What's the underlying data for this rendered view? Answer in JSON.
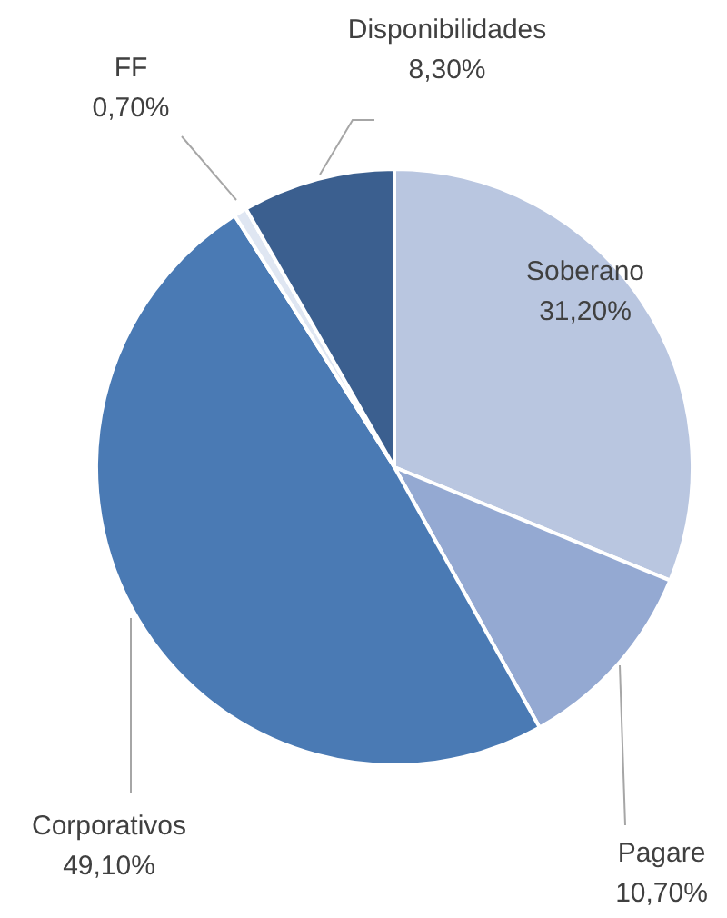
{
  "chart_data": {
    "type": "pie",
    "categories": [
      "Soberano",
      "Pagare",
      "Corporativos",
      "FF",
      "Disponibilidades"
    ],
    "values": [
      31.2,
      10.7,
      49.1,
      0.7,
      8.3
    ],
    "value_labels": [
      "31,20%",
      "10,70%",
      "49,10%",
      "0,70%",
      "8,30%"
    ],
    "colors": [
      "#b9c6e0",
      "#94a9d2",
      "#4a7ab4",
      "#dfe6f2",
      "#3b5f8f"
    ],
    "legend": false
  }
}
